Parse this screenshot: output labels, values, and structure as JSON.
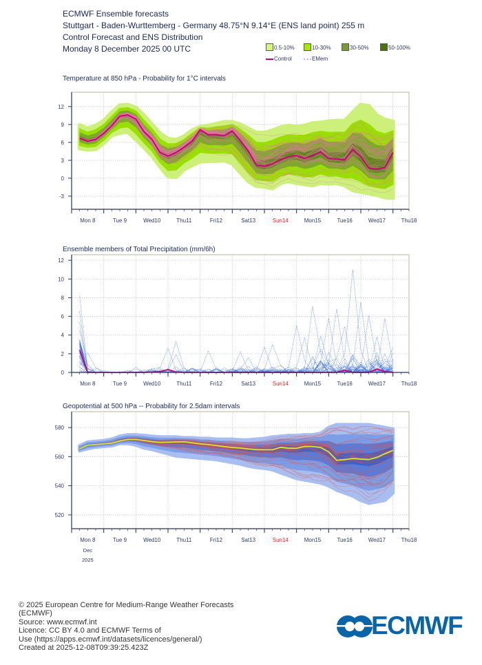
{
  "header": {
    "line1": "ECMWF Ensemble forecasts",
    "line2": "Stuttgart - Baden-Wurttemberg - Germany 48.75°N 9.14°E (ENS land point) 255 m",
    "line3": "Control Forecast and ENS Distribution",
    "line4": "Monday 8 December 2025 00 UTC"
  },
  "legend": {
    "bands": [
      {
        "label": "0.5-10%",
        "color": "#d4f880"
      },
      {
        "label": "10-30%",
        "color": "#a8e800"
      },
      {
        "label": "30-50%",
        "color": "#7a9a3a"
      },
      {
        "label": "50-100%",
        "color": "#4a7010"
      }
    ],
    "control_label": "Control",
    "control_color": "#cc0077",
    "members_label": "EMem",
    "members_color": "#f5a0c8"
  },
  "x_axis": {
    "day_labels": [
      "Mon 8",
      "Tue 9",
      "Wed10",
      "Thu11",
      "Fri12",
      "Sat13",
      "Sun14",
      "Mon15",
      "Tue16",
      "Wed17",
      "Thu18"
    ],
    "highlight_label": "Sun14",
    "highlight_color": "#ee2222",
    "month_label": "Dec",
    "year_label": "2025"
  },
  "chart_data": [
    {
      "type": "line",
      "title": "Temperature at 850 hPa - Probability for 1°C intervals",
      "ylim": [
        -5.2,
        14.4
      ],
      "yticks": [
        -3,
        0,
        3,
        6,
        9,
        12
      ],
      "grid": true,
      "x": [
        "2025-12-08T06",
        "2025-12-08T12",
        "2025-12-08T18",
        "2025-12-09T00",
        "2025-12-09T06",
        "2025-12-09T12",
        "2025-12-09T18",
        "2025-12-10T00",
        "2025-12-10T06",
        "2025-12-10T12",
        "2025-12-10T18",
        "2025-12-11T00",
        "2025-12-11T06",
        "2025-12-11T12",
        "2025-12-11T18",
        "2025-12-12T00",
        "2025-12-12T06",
        "2025-12-12T12",
        "2025-12-12T18",
        "2025-12-13T00",
        "2025-12-13T06",
        "2025-12-13T12",
        "2025-12-13T18",
        "2025-12-14T00",
        "2025-12-14T06",
        "2025-12-14T12",
        "2025-12-14T18",
        "2025-12-15T00",
        "2025-12-15T06",
        "2025-12-15T12",
        "2025-12-15T18",
        "2025-12-16T00",
        "2025-12-16T06",
        "2025-12-16T12",
        "2025-12-16T18",
        "2025-12-17T00",
        "2025-12-17T06",
        "2025-12-17T12",
        "2025-12-17T18",
        "2025-12-18T00"
      ],
      "control": [
        6.7,
        6.2,
        6.5,
        7.5,
        8.8,
        10.4,
        10.6,
        9.9,
        7.8,
        6.5,
        4.3,
        3.7,
        4.3,
        5.2,
        6.2,
        8.1,
        7.3,
        7.3,
        7.1,
        7.9,
        6.3,
        4.5,
        2.2,
        2.0,
        2.4,
        3.1,
        3.6,
        3.8,
        3.3,
        3.8,
        4.4,
        3.3,
        3.2,
        3.1,
        4.8,
        3.6,
        1.7,
        1.5,
        1.8,
        4.3
      ],
      "ens_max": [
        8.9,
        8.3,
        8.8,
        9.6,
        11,
        12.2,
        12.3,
        11.8,
        10.5,
        9,
        7.5,
        6.6,
        6.4,
        7,
        8,
        8.6,
        8.8,
        9.1,
        9.4,
        9.4,
        9,
        8.3,
        7.6,
        7.6,
        8,
        8.5,
        8.8,
        8.6,
        8.8,
        9.2,
        9.3,
        9.5,
        9.6,
        9.6,
        11,
        12.3,
        12.1,
        10.5,
        9.8,
        9.5
      ],
      "ens_min": [
        5,
        4.8,
        4.9,
        5.9,
        7.2,
        7.6,
        7.8,
        6.5,
        5.2,
        3.8,
        2,
        0.3,
        0.2,
        1.5,
        2.2,
        2.8,
        2.9,
        2.9,
        3,
        2.5,
        1,
        -0.5,
        -1.3,
        -1.4,
        -1.7,
        -0.8,
        -0.5,
        -0.8,
        -1,
        -1.2,
        -0.8,
        -0.9,
        -0.8,
        -1.2,
        -2,
        -2.3,
        -2.5,
        -2.8,
        -3.2,
        -3.3
      ],
      "colors": {
        "band_0_5_10": "#ccf07a",
        "band_10_30": "#99e000",
        "band_30_50": "#6f9a30",
        "band_50_100": "#4a7010",
        "control": "#cc0077",
        "members": "#f070b0"
      }
    },
    {
      "type": "line",
      "title": "Ensemble members of Total Precipitation (mm/6h)",
      "ylim": [
        0,
        12.6
      ],
      "yticks": [
        0,
        2,
        4,
        6,
        8,
        10,
        12
      ],
      "grid": true,
      "x": [
        "2025-12-08T06",
        "2025-12-08T12",
        "2025-12-08T18",
        "2025-12-09T00",
        "2025-12-09T06",
        "2025-12-09T12",
        "2025-12-09T18",
        "2025-12-10T00",
        "2025-12-10T06",
        "2025-12-10T12",
        "2025-12-10T18",
        "2025-12-11T00",
        "2025-12-11T06",
        "2025-12-11T12",
        "2025-12-11T18",
        "2025-12-12T00",
        "2025-12-12T06",
        "2025-12-12T12",
        "2025-12-12T18",
        "2025-12-13T00",
        "2025-12-13T06",
        "2025-12-13T12",
        "2025-12-13T18",
        "2025-12-14T00",
        "2025-12-14T06",
        "2025-12-14T12",
        "2025-12-14T18",
        "2025-12-15T00",
        "2025-12-15T06",
        "2025-12-15T12",
        "2025-12-15T18",
        "2025-12-16T00",
        "2025-12-16T06",
        "2025-12-16T12",
        "2025-12-16T18",
        "2025-12-17T00",
        "2025-12-17T06",
        "2025-12-17T12",
        "2025-12-17T18",
        "2025-12-18T00"
      ],
      "control": [
        2.4,
        0,
        0,
        0,
        0,
        0,
        0,
        0,
        0,
        0.05,
        0.1,
        0.3,
        0.05,
        0,
        0,
        0,
        0,
        0,
        0,
        0,
        0,
        0,
        0,
        0,
        0,
        0,
        0,
        0,
        0,
        0,
        0,
        0,
        0,
        0.25,
        0,
        0,
        0,
        0.35,
        0.1,
        0
      ],
      "member_peaks": [
        {
          "x": "2025-12-08T06",
          "value": 8.2
        },
        {
          "x": "2025-12-08T06",
          "value": 6.5
        },
        {
          "x": "2025-12-08T06",
          "value": 5.3
        },
        {
          "x": "2025-12-08T06",
          "value": 4.5
        },
        {
          "x": "2025-12-08T12",
          "value": 2.1
        },
        {
          "x": "2025-12-11T00",
          "value": 2.6
        },
        {
          "x": "2025-12-11T06",
          "value": 3.3
        },
        {
          "x": "2025-12-11T06",
          "value": 1.9
        },
        {
          "x": "2025-12-12T06",
          "value": 2.3
        },
        {
          "x": "2025-12-13T06",
          "value": 2.2
        },
        {
          "x": "2025-12-13T12",
          "value": 1.6
        },
        {
          "x": "2025-12-14T00",
          "value": 2.7
        },
        {
          "x": "2025-12-14T06",
          "value": 3.0
        },
        {
          "x": "2025-12-15T00",
          "value": 5.0
        },
        {
          "x": "2025-12-15T06",
          "value": 3.7
        },
        {
          "x": "2025-12-15T12",
          "value": 7.1
        },
        {
          "x": "2025-12-15T18",
          "value": 2.5
        },
        {
          "x": "2025-12-15T18",
          "value": 3.9
        },
        {
          "x": "2025-12-16T00",
          "value": 5.8
        },
        {
          "x": "2025-12-16T06",
          "value": 6.8
        },
        {
          "x": "2025-12-16T12",
          "value": 4.9
        },
        {
          "x": "2025-12-16T18",
          "value": 11.0
        },
        {
          "x": "2025-12-17T00",
          "value": 7.5
        },
        {
          "x": "2025-12-17T06",
          "value": 6.1
        },
        {
          "x": "2025-12-17T12",
          "value": 3.8
        },
        {
          "x": "2025-12-17T18",
          "value": 5.8
        },
        {
          "x": "2025-12-18T00",
          "value": 2.7
        }
      ],
      "colors": {
        "control": "#cc0077",
        "members": "#3a70e0"
      }
    },
    {
      "type": "line",
      "title": "Geopotential at 500 hPa -- Probability for 2.5dam intervals",
      "ylim": [
        510.5,
        590.9
      ],
      "yticks": [
        520,
        540,
        560,
        580
      ],
      "grid": true,
      "x": [
        "2025-12-08T06",
        "2025-12-08T12",
        "2025-12-08T18",
        "2025-12-09T00",
        "2025-12-09T06",
        "2025-12-09T12",
        "2025-12-09T18",
        "2025-12-10T00",
        "2025-12-10T06",
        "2025-12-10T12",
        "2025-12-10T18",
        "2025-12-11T00",
        "2025-12-11T06",
        "2025-12-11T12",
        "2025-12-11T18",
        "2025-12-12T00",
        "2025-12-12T06",
        "2025-12-12T12",
        "2025-12-12T18",
        "2025-12-13T00",
        "2025-12-13T06",
        "2025-12-13T12",
        "2025-12-13T18",
        "2025-12-14T00",
        "2025-12-14T06",
        "2025-12-14T12",
        "2025-12-14T18",
        "2025-12-15T00",
        "2025-12-15T06",
        "2025-12-15T12",
        "2025-12-15T18",
        "2025-12-16T00",
        "2025-12-16T06",
        "2025-12-16T12",
        "2025-12-16T18",
        "2025-12-17T00",
        "2025-12-17T06",
        "2025-12-17T12",
        "2025-12-17T18",
        "2025-12-18T00"
      ],
      "control": [
        565.5,
        567.9,
        568.3,
        568.8,
        569.3,
        570.8,
        571.8,
        571.8,
        571.1,
        570.3,
        569.8,
        569.9,
        570.1,
        570.2,
        569.5,
        568.8,
        568.3,
        567.6,
        566.9,
        566.3,
        565.9,
        565.3,
        564.8,
        564.7,
        564.7,
        566.4,
        565.8,
        565.7,
        567,
        566.9,
        566.3,
        563.3,
        557.5,
        558,
        558.7,
        558.3,
        558,
        559.5,
        562,
        564.3
      ],
      "ens_max": [
        567.5,
        570,
        570.5,
        571,
        572,
        574,
        575,
        575,
        574.5,
        574,
        573.5,
        573.5,
        573.5,
        573,
        573,
        572.5,
        572.5,
        572,
        572,
        572,
        571.5,
        571.5,
        572,
        572.5,
        573.5,
        574,
        574.5,
        574.5,
        575,
        575,
        576,
        580,
        582,
        582,
        582,
        582,
        582,
        581,
        580,
        579
      ],
      "ens_min": [
        564,
        565.5,
        566.5,
        567,
        567.5,
        569,
        569,
        568,
        566,
        565,
        563.5,
        562,
        560.5,
        560,
        559.5,
        559,
        558.5,
        558,
        557,
        556,
        555,
        553.5,
        552.5,
        552,
        551,
        549,
        547,
        545,
        544,
        543,
        542,
        540,
        537,
        535,
        533,
        530,
        528,
        529,
        530,
        535
      ],
      "colors": {
        "band_0_5_10": "#a8bdf0",
        "band_10_30": "#7d9ee6",
        "band_30_50": "#4a72d8",
        "band_50_100": "#2a50c0",
        "control": "#d8e830",
        "members": "#e8503a"
      }
    }
  ],
  "footer": {
    "line1": "© 2025 European Centre for Medium-Range Weather Forecasts",
    "line2": "(ECMWF)",
    "line3": "Source: www.ecmwf.int",
    "line4": "Licence: CC BY 4.0 and ECMWF Terms of",
    "line5": "Use (https://apps.ecmwf.int/datasets/licences/general/)",
    "line6": "Created at 2025-12-08T09:39:25.423Z",
    "logo_text": "ECMWF",
    "logo_color": "#0a64a8"
  }
}
